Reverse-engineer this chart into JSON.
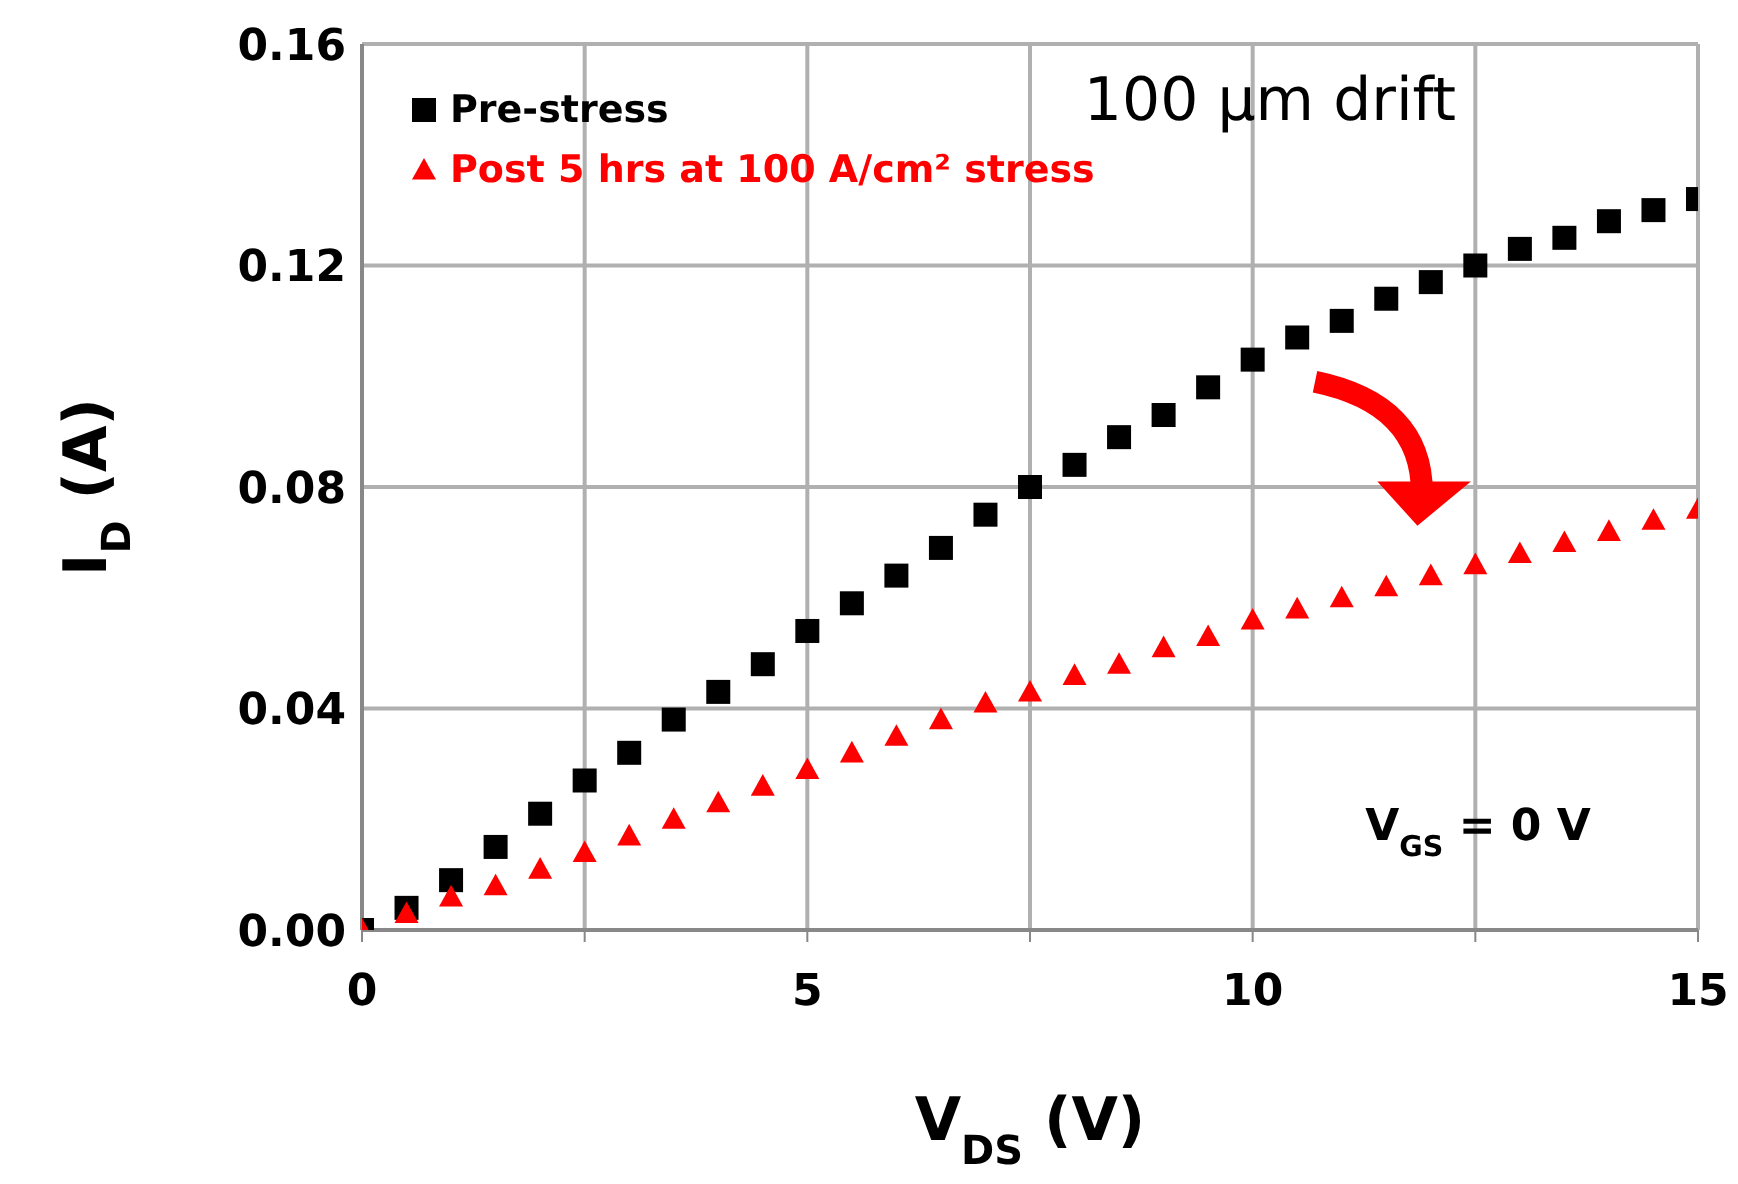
{
  "chart_data": {
    "type": "scatter",
    "xlabel": "V$_{DS}$ (V)",
    "ylabel": "I$_{D}$ (A)",
    "annotations": [
      "100 µm drift",
      "V$_{GS}$ = 0 V"
    ],
    "x": [
      0,
      0.5,
      1,
      1.5,
      2,
      2.5,
      3,
      3.5,
      4,
      4.5,
      5,
      5.5,
      6,
      6.5,
      7,
      7.5,
      8,
      8.5,
      9,
      9.5,
      10,
      10.5,
      11,
      11.5,
      12,
      12.5,
      13,
      13.5,
      14,
      14.5,
      15
    ],
    "series": [
      {
        "name": "Pre-stress",
        "color": "#000000",
        "marker": "square",
        "values": [
          0,
          0.004,
          0.009,
          0.015,
          0.021,
          0.027,
          0.032,
          0.038,
          0.043,
          0.048,
          0.054,
          0.059,
          0.064,
          0.069,
          0.075,
          0.08,
          0.084,
          0.089,
          0.093,
          0.098,
          0.103,
          0.107,
          0.11,
          0.114,
          0.117,
          0.12,
          0.123,
          0.125,
          0.128,
          0.13,
          0.132
        ]
      },
      {
        "name": "Post 5 hrs at 100 A/cm² stress",
        "color": "#ff0000",
        "marker": "triangle",
        "values": [
          0,
          0.003,
          0.006,
          0.008,
          0.011,
          0.014,
          0.017,
          0.02,
          0.023,
          0.026,
          0.029,
          0.032,
          0.035,
          0.038,
          0.041,
          0.043,
          0.046,
          0.048,
          0.051,
          0.053,
          0.056,
          0.058,
          0.06,
          0.062,
          0.064,
          0.066,
          0.068,
          0.07,
          0.072,
          0.074,
          0.076
        ]
      }
    ],
    "xlim": [
      0,
      15
    ],
    "xticks": [
      0,
      {
        "value": 2.5,
        "label": null
      },
      5,
      {
        "value": 7.5,
        "label": null
      },
      10,
      {
        "value": 12.5,
        "label": null
      },
      15
    ],
    "ylim": [
      0,
      0.16
    ],
    "yticks": [
      {
        "value": 0,
        "label": "0.00"
      },
      {
        "value": 0.04,
        "label": "0.04"
      },
      {
        "value": 0.08,
        "label": "0.08"
      },
      {
        "value": 0.12,
        "label": "0.12"
      },
      {
        "value": 0.16,
        "label": "0.16"
      }
    ],
    "grid": true,
    "legend": "top left"
  }
}
